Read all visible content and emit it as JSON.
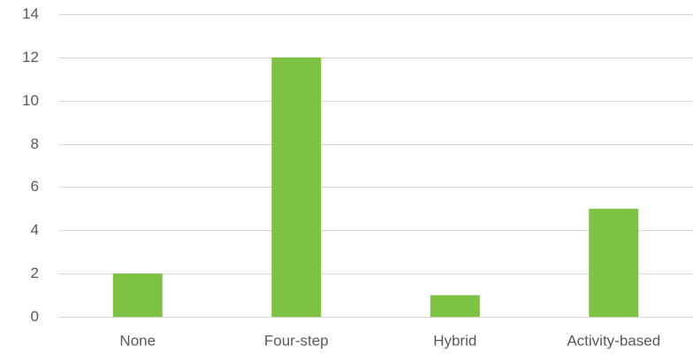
{
  "chart_data": {
    "type": "bar",
    "title": "",
    "xlabel": "",
    "ylabel": "",
    "categories": [
      "None",
      "Four-step",
      "Hybrid",
      "Activity-based"
    ],
    "values": [
      2,
      12,
      1,
      5
    ],
    "ylim": [
      0,
      14
    ],
    "yticks": [
      0,
      2,
      4,
      6,
      8,
      10,
      12,
      14
    ],
    "ytick_labels": [
      "0",
      "2",
      "4",
      "6",
      "8",
      "10",
      "12",
      "14"
    ],
    "grid": true,
    "legend": "none",
    "bar_color": "#7dc243",
    "grid_color": "#d9d9d9",
    "text_color": "#595959"
  }
}
